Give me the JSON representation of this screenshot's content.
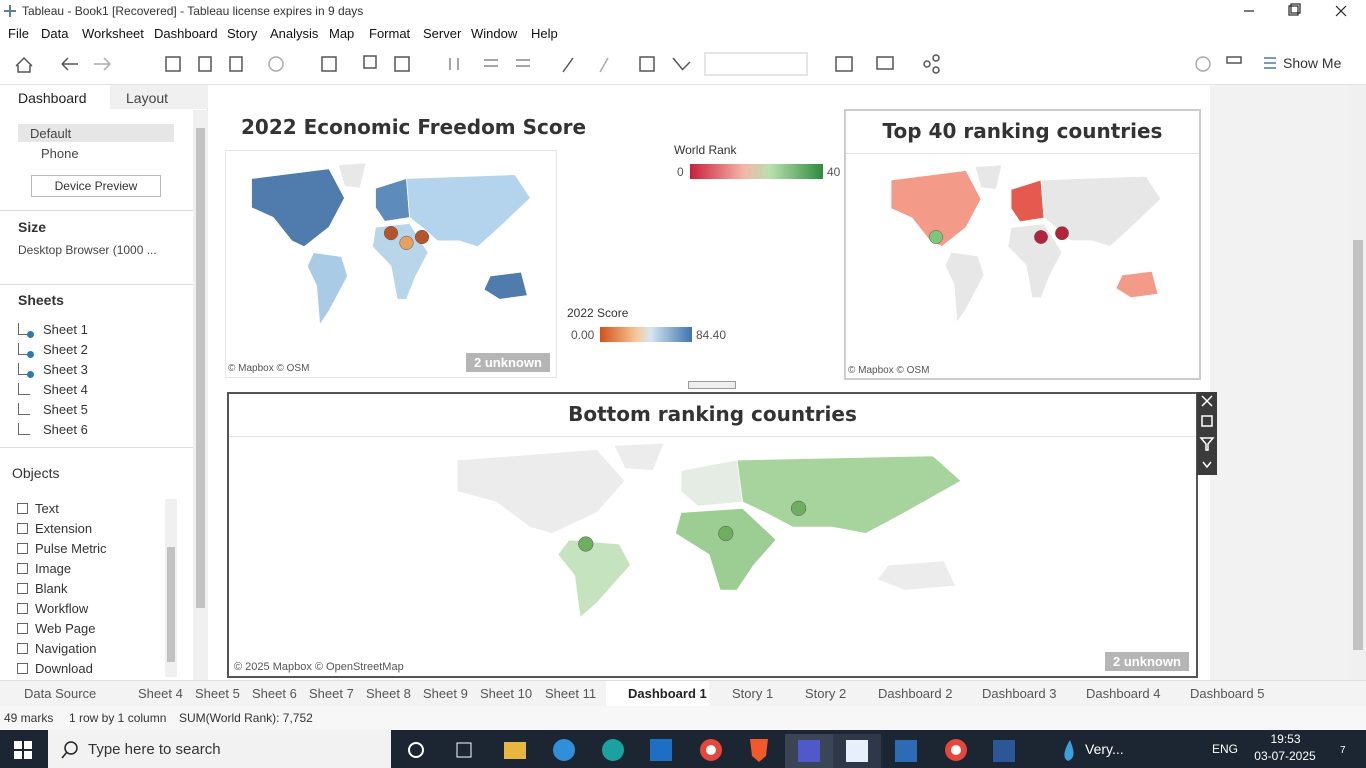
{
  "window": {
    "title": "Tableau - Book1 [Recovered] - Tableau license expires in 9 days"
  },
  "menu": [
    "File",
    "Data",
    "Worksheet",
    "Dashboard",
    "Story",
    "Analysis",
    "Map",
    "Format",
    "Server",
    "Window",
    "Help"
  ],
  "toolbar": {
    "show_me": "Show Me"
  },
  "side_panel": {
    "tabs": [
      "Dashboard",
      "Layout"
    ],
    "devices": [
      "Default",
      "Phone"
    ],
    "device_preview": "Device Preview",
    "size_heading": "Size",
    "size_value": "Desktop Browser (1000 ...",
    "sheets_heading": "Sheets",
    "sheets": [
      "Sheet 1",
      "Sheet 2",
      "Sheet 3",
      "Sheet 4",
      "Sheet 5",
      "Sheet 6"
    ],
    "objects_heading": "Objects",
    "objects": [
      "Text",
      "Extension",
      "Pulse Metric",
      "Image",
      "Blank",
      "Workflow",
      "Web Page",
      "Navigation",
      "Download"
    ]
  },
  "dashboard": {
    "map1": {
      "title": "2022 Economic Freedom Score",
      "attribution": "© Mapbox © OSM",
      "unknown": "2 unknown"
    },
    "legend_rank": {
      "title": "World Rank",
      "min": "0",
      "max": "40"
    },
    "legend_score": {
      "title": "2022 Score",
      "min": "0.00",
      "max": "84.40"
    },
    "map2": {
      "title": "Top 40 ranking countries",
      "attribution": "© Mapbox © OSM"
    },
    "map3": {
      "title": "Bottom ranking countries",
      "attribution": "© 2025 Mapbox © OpenStreetMap",
      "unknown": "2 unknown"
    }
  },
  "tabs": [
    "Data Source",
    "Sheet 4",
    "Sheet 5",
    "Sheet 6",
    "Sheet 7",
    "Sheet 8",
    "Sheet 9",
    "Sheet 10",
    "Sheet 11",
    "Dashboard 1",
    "Story 1",
    "Story 2",
    "Dashboard 2",
    "Dashboard 3",
    "Dashboard 4",
    "Dashboard 5"
  ],
  "status": [
    "49 marks",
    "1 row by 1 column",
    "SUM(World Rank): 7,752"
  ],
  "taskbar": {
    "search": "Type here to search",
    "app": "Very...",
    "lang": "ENG",
    "time": "19:53",
    "date": "03-07-2025",
    "badge": "7"
  }
}
